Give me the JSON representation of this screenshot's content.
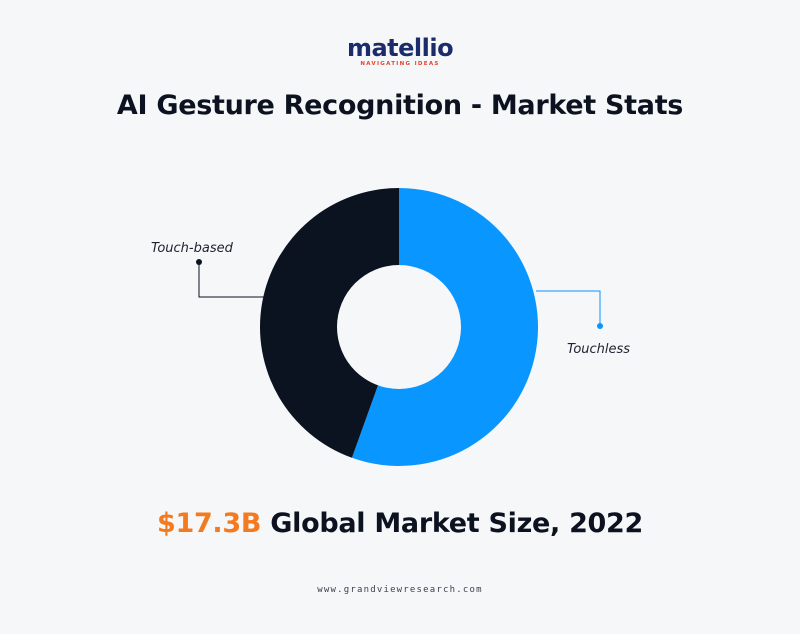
{
  "logo": {
    "name": "matellio",
    "tagline": "NAVIGATING IDEAS"
  },
  "title": "AI Gesture Recognition - Market Stats",
  "chart_data": {
    "type": "pie",
    "style": "donut",
    "categories": [
      "Touchless",
      "Touch-based"
    ],
    "values": [
      55.5,
      44.5
    ],
    "colors": [
      "#0a96ff",
      "#0b1220"
    ],
    "labels": [
      "Touchless",
      "Touch-based"
    ]
  },
  "stat": {
    "value": "$17.3B",
    "label": "Global Market Size, 2022"
  },
  "source": "www.grandviewresearch.com",
  "colors": {
    "background": "#f6f7f8",
    "accent": "#f47a1f",
    "brand": "#1c2b6b"
  }
}
